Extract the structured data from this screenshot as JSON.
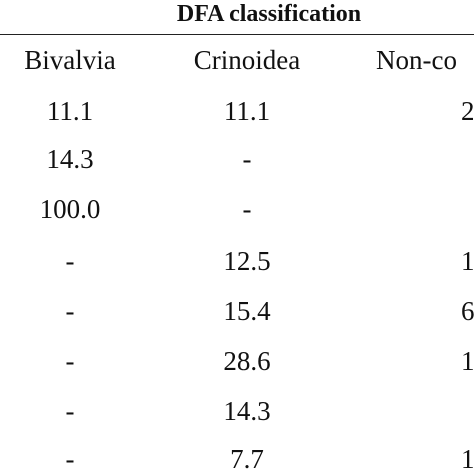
{
  "title": "DFA classification",
  "columns": [
    "Bivalvia",
    "Crinoidea",
    "Non-co"
  ],
  "rows": [
    [
      "11.1",
      "11.1",
      "2"
    ],
    [
      "14.3",
      "-",
      ""
    ],
    [
      "100.0",
      "-",
      ""
    ],
    [
      "-",
      "12.5",
      "1"
    ],
    [
      "-",
      "15.4",
      "6"
    ],
    [
      "-",
      "28.6",
      "1"
    ],
    [
      "-",
      "14.3",
      ""
    ],
    [
      "-",
      "7.7",
      "1"
    ]
  ]
}
